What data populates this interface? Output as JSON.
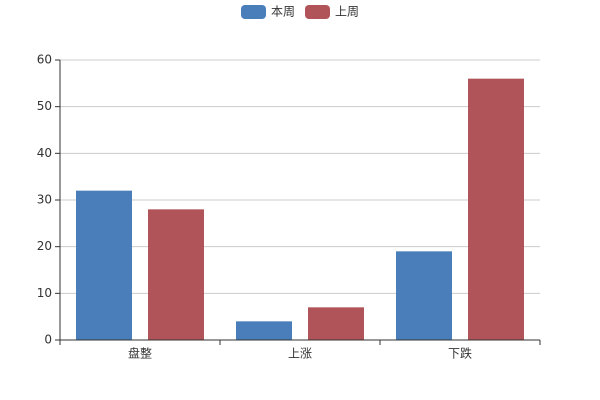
{
  "chart_data": {
    "type": "bar",
    "categories": [
      "盘整",
      "上涨",
      "下跌"
    ],
    "series": [
      {
        "name": "本周",
        "color": "#4a7ebb",
        "values": [
          32,
          4,
          19
        ]
      },
      {
        "name": "上周",
        "color": "#b0545a",
        "values": [
          28,
          7,
          56
        ]
      }
    ],
    "ylim": [
      0,
      60
    ],
    "yticks": [
      0,
      10,
      20,
      30,
      40,
      50,
      60
    ],
    "grid": true,
    "legend": "top"
  }
}
